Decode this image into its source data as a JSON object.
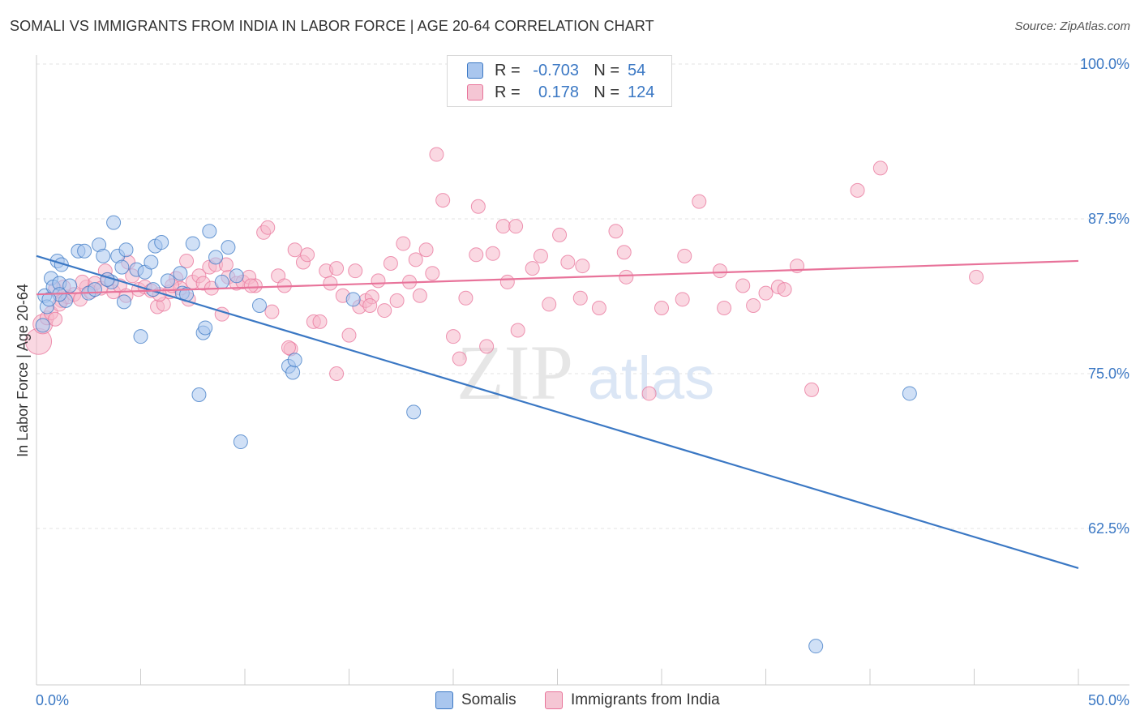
{
  "title": "SOMALI VS IMMIGRANTS FROM INDIA IN LABOR FORCE | AGE 20-64 CORRELATION CHART",
  "source": "Source: ZipAtlas.com",
  "watermark": {
    "zip": "ZIP",
    "atlas": "atlas"
  },
  "colors": {
    "blue": "#3b78c4",
    "blue_fill": "#a9c6ee",
    "pink": "#e8739a",
    "pink_fill": "#f5b8cb",
    "grid": "#e3e3e3",
    "axis_text": "#3b78c4"
  },
  "legend_top": {
    "rows": [
      {
        "series": "Somalis",
        "r_label": "R =",
        "r_value": "-0.703",
        "n_label": "N =",
        "n_value": "54"
      },
      {
        "series": "Immigrants from India",
        "r_label": "R =",
        "r_value": "0.178",
        "n_label": "N =",
        "n_value": "124"
      }
    ]
  },
  "legend_bottom": [
    "Somalis",
    "Immigrants from India"
  ],
  "chart_data": {
    "type": "scatter",
    "title": "SOMALI VS IMMIGRANTS FROM INDIA IN LABOR FORCE | AGE 20-64 CORRELATION CHART",
    "xlabel": "",
    "ylabel": "In Labor Force | Age 20-64",
    "xlim": [
      0,
      50
    ],
    "ylim": [
      50,
      102
    ],
    "x_tick_labels": [
      "0.0%",
      "50.0%"
    ],
    "y_ticks": [
      62.5,
      75.0,
      87.5,
      100.0
    ],
    "y_tick_labels": [
      "62.5%",
      "75.0%",
      "87.5%",
      "100.0%"
    ],
    "grid": true,
    "legend": "bottom-center",
    "series": [
      {
        "name": "Somalis",
        "color": "#3b78c4",
        "trend": {
          "x": [
            0,
            50
          ],
          "y": [
            84.5,
            59.3
          ]
        },
        "points": [
          [
            0.3,
            78.9
          ],
          [
            0.4,
            81.3
          ],
          [
            0.5,
            80.4
          ],
          [
            0.7,
            82.7
          ],
          [
            0.8,
            82.0
          ],
          [
            1.0,
            84.1
          ],
          [
            1.1,
            82.3
          ],
          [
            1.2,
            83.8
          ],
          [
            1.4,
            80.9
          ],
          [
            1.6,
            82.1
          ],
          [
            2.0,
            84.9
          ],
          [
            2.3,
            84.9
          ],
          [
            2.5,
            81.5
          ],
          [
            2.8,
            81.8
          ],
          [
            3.0,
            85.4
          ],
          [
            3.2,
            84.5
          ],
          [
            3.6,
            82.4
          ],
          [
            3.7,
            87.2
          ],
          [
            3.9,
            84.5
          ],
          [
            4.1,
            83.6
          ],
          [
            4.2,
            80.8
          ],
          [
            4.3,
            85.0
          ],
          [
            4.8,
            83.4
          ],
          [
            5.0,
            78.0
          ],
          [
            5.2,
            83.2
          ],
          [
            5.5,
            84.0
          ],
          [
            5.6,
            81.8
          ],
          [
            5.7,
            85.3
          ],
          [
            6.0,
            85.6
          ],
          [
            6.3,
            82.5
          ],
          [
            6.9,
            83.1
          ],
          [
            7.0,
            81.5
          ],
          [
            7.2,
            81.4
          ],
          [
            7.5,
            85.5
          ],
          [
            7.8,
            73.3
          ],
          [
            8.0,
            78.3
          ],
          [
            8.1,
            78.7
          ],
          [
            8.3,
            86.5
          ],
          [
            8.6,
            84.4
          ],
          [
            8.9,
            82.4
          ],
          [
            9.2,
            85.2
          ],
          [
            9.6,
            82.9
          ],
          [
            9.8,
            69.5
          ],
          [
            10.7,
            80.5
          ],
          [
            12.1,
            75.6
          ],
          [
            12.3,
            75.1
          ],
          [
            12.4,
            76.1
          ],
          [
            15.2,
            81.0
          ],
          [
            18.1,
            71.9
          ],
          [
            37.4,
            53.0
          ],
          [
            41.9,
            73.4
          ],
          [
            1.1,
            81.4
          ],
          [
            3.4,
            82.6
          ],
          [
            0.6,
            81.0
          ]
        ]
      },
      {
        "name": "Immigrants from India",
        "color": "#e8739a",
        "trend": {
          "x": [
            0,
            50
          ],
          "y": [
            81.4,
            84.1
          ]
        },
        "points": [
          [
            0.1,
            77.6
          ],
          [
            0.3,
            79.0
          ],
          [
            0.5,
            79.5
          ],
          [
            0.7,
            79.9
          ],
          [
            0.9,
            79.4
          ],
          [
            1.2,
            80.9
          ],
          [
            1.5,
            81.2
          ],
          [
            1.8,
            81.4
          ],
          [
            2.1,
            81.0
          ],
          [
            2.4,
            82.0
          ],
          [
            2.6,
            81.6
          ],
          [
            2.8,
            82.3
          ],
          [
            3.1,
            81.9
          ],
          [
            3.4,
            82.6
          ],
          [
            3.7,
            81.6
          ],
          [
            4.0,
            82.1
          ],
          [
            4.3,
            81.3
          ],
          [
            4.6,
            82.9
          ],
          [
            4.9,
            81.8
          ],
          [
            5.2,
            82.0
          ],
          [
            5.5,
            81.7
          ],
          [
            5.8,
            80.4
          ],
          [
            6.1,
            80.6
          ],
          [
            6.4,
            81.6
          ],
          [
            6.7,
            82.7
          ],
          [
            6.9,
            81.9
          ],
          [
            7.2,
            84.1
          ],
          [
            7.5,
            82.4
          ],
          [
            7.8,
            82.9
          ],
          [
            8.0,
            82.3
          ],
          [
            8.3,
            83.6
          ],
          [
            8.6,
            83.8
          ],
          [
            8.9,
            79.8
          ],
          [
            9.2,
            82.8
          ],
          [
            9.6,
            82.3
          ],
          [
            9.9,
            82.4
          ],
          [
            10.2,
            82.8
          ],
          [
            10.5,
            82.1
          ],
          [
            10.9,
            86.4
          ],
          [
            11.1,
            86.8
          ],
          [
            11.3,
            80.0
          ],
          [
            11.6,
            82.9
          ],
          [
            11.9,
            82.1
          ],
          [
            12.2,
            77.0
          ],
          [
            12.4,
            85.0
          ],
          [
            12.8,
            84.0
          ],
          [
            13.0,
            84.6
          ],
          [
            13.3,
            79.2
          ],
          [
            13.6,
            79.2
          ],
          [
            13.9,
            83.3
          ],
          [
            14.1,
            82.3
          ],
          [
            14.4,
            83.5
          ],
          [
            14.7,
            81.3
          ],
          [
            15.0,
            78.1
          ],
          [
            15.3,
            83.3
          ],
          [
            15.5,
            80.4
          ],
          [
            15.8,
            80.9
          ],
          [
            16.1,
            81.2
          ],
          [
            16.4,
            82.5
          ],
          [
            16.7,
            80.1
          ],
          [
            17.0,
            83.9
          ],
          [
            17.3,
            80.9
          ],
          [
            17.6,
            85.5
          ],
          [
            17.9,
            82.4
          ],
          [
            18.2,
            84.2
          ],
          [
            18.4,
            81.3
          ],
          [
            18.7,
            85.0
          ],
          [
            19.0,
            83.1
          ],
          [
            19.5,
            89.0
          ],
          [
            19.2,
            92.7
          ],
          [
            20.0,
            78.0
          ],
          [
            20.3,
            76.2
          ],
          [
            20.6,
            81.1
          ],
          [
            21.1,
            84.6
          ],
          [
            21.2,
            88.5
          ],
          [
            21.9,
            84.7
          ],
          [
            22.4,
            86.9
          ],
          [
            22.6,
            82.4
          ],
          [
            23.1,
            78.5
          ],
          [
            23.8,
            83.5
          ],
          [
            24.2,
            84.5
          ],
          [
            24.6,
            80.6
          ],
          [
            25.1,
            86.2
          ],
          [
            25.5,
            84.0
          ],
          [
            26.1,
            81.1
          ],
          [
            27.0,
            80.3
          ],
          [
            27.8,
            86.5
          ],
          [
            28.3,
            82.8
          ],
          [
            29.4,
            73.4
          ],
          [
            30.0,
            80.3
          ],
          [
            31.0,
            81.0
          ],
          [
            31.8,
            88.9
          ],
          [
            32.8,
            83.3
          ],
          [
            33.0,
            80.3
          ],
          [
            33.9,
            82.1
          ],
          [
            34.4,
            80.5
          ],
          [
            35.0,
            81.5
          ],
          [
            35.6,
            82.0
          ],
          [
            35.9,
            81.8
          ],
          [
            36.5,
            83.7
          ],
          [
            37.2,
            73.7
          ],
          [
            39.4,
            89.8
          ],
          [
            40.5,
            91.6
          ],
          [
            45.1,
            82.8
          ],
          [
            14.4,
            75.0
          ],
          [
            12.1,
            77.1
          ],
          [
            16.0,
            80.5
          ],
          [
            21.6,
            77.2
          ],
          [
            23.0,
            86.9
          ],
          [
            26.2,
            83.7
          ],
          [
            28.2,
            84.8
          ],
          [
            31.1,
            84.5
          ],
          [
            10.3,
            82.1
          ],
          [
            9.1,
            83.8
          ],
          [
            6.5,
            82.1
          ],
          [
            5.9,
            81.4
          ],
          [
            3.3,
            83.3
          ],
          [
            2.2,
            82.4
          ],
          [
            1.1,
            80.6
          ],
          [
            0.9,
            81.8
          ],
          [
            1.3,
            82.0
          ],
          [
            4.4,
            84.0
          ],
          [
            7.3,
            81.0
          ],
          [
            8.4,
            81.9
          ]
        ]
      }
    ]
  }
}
